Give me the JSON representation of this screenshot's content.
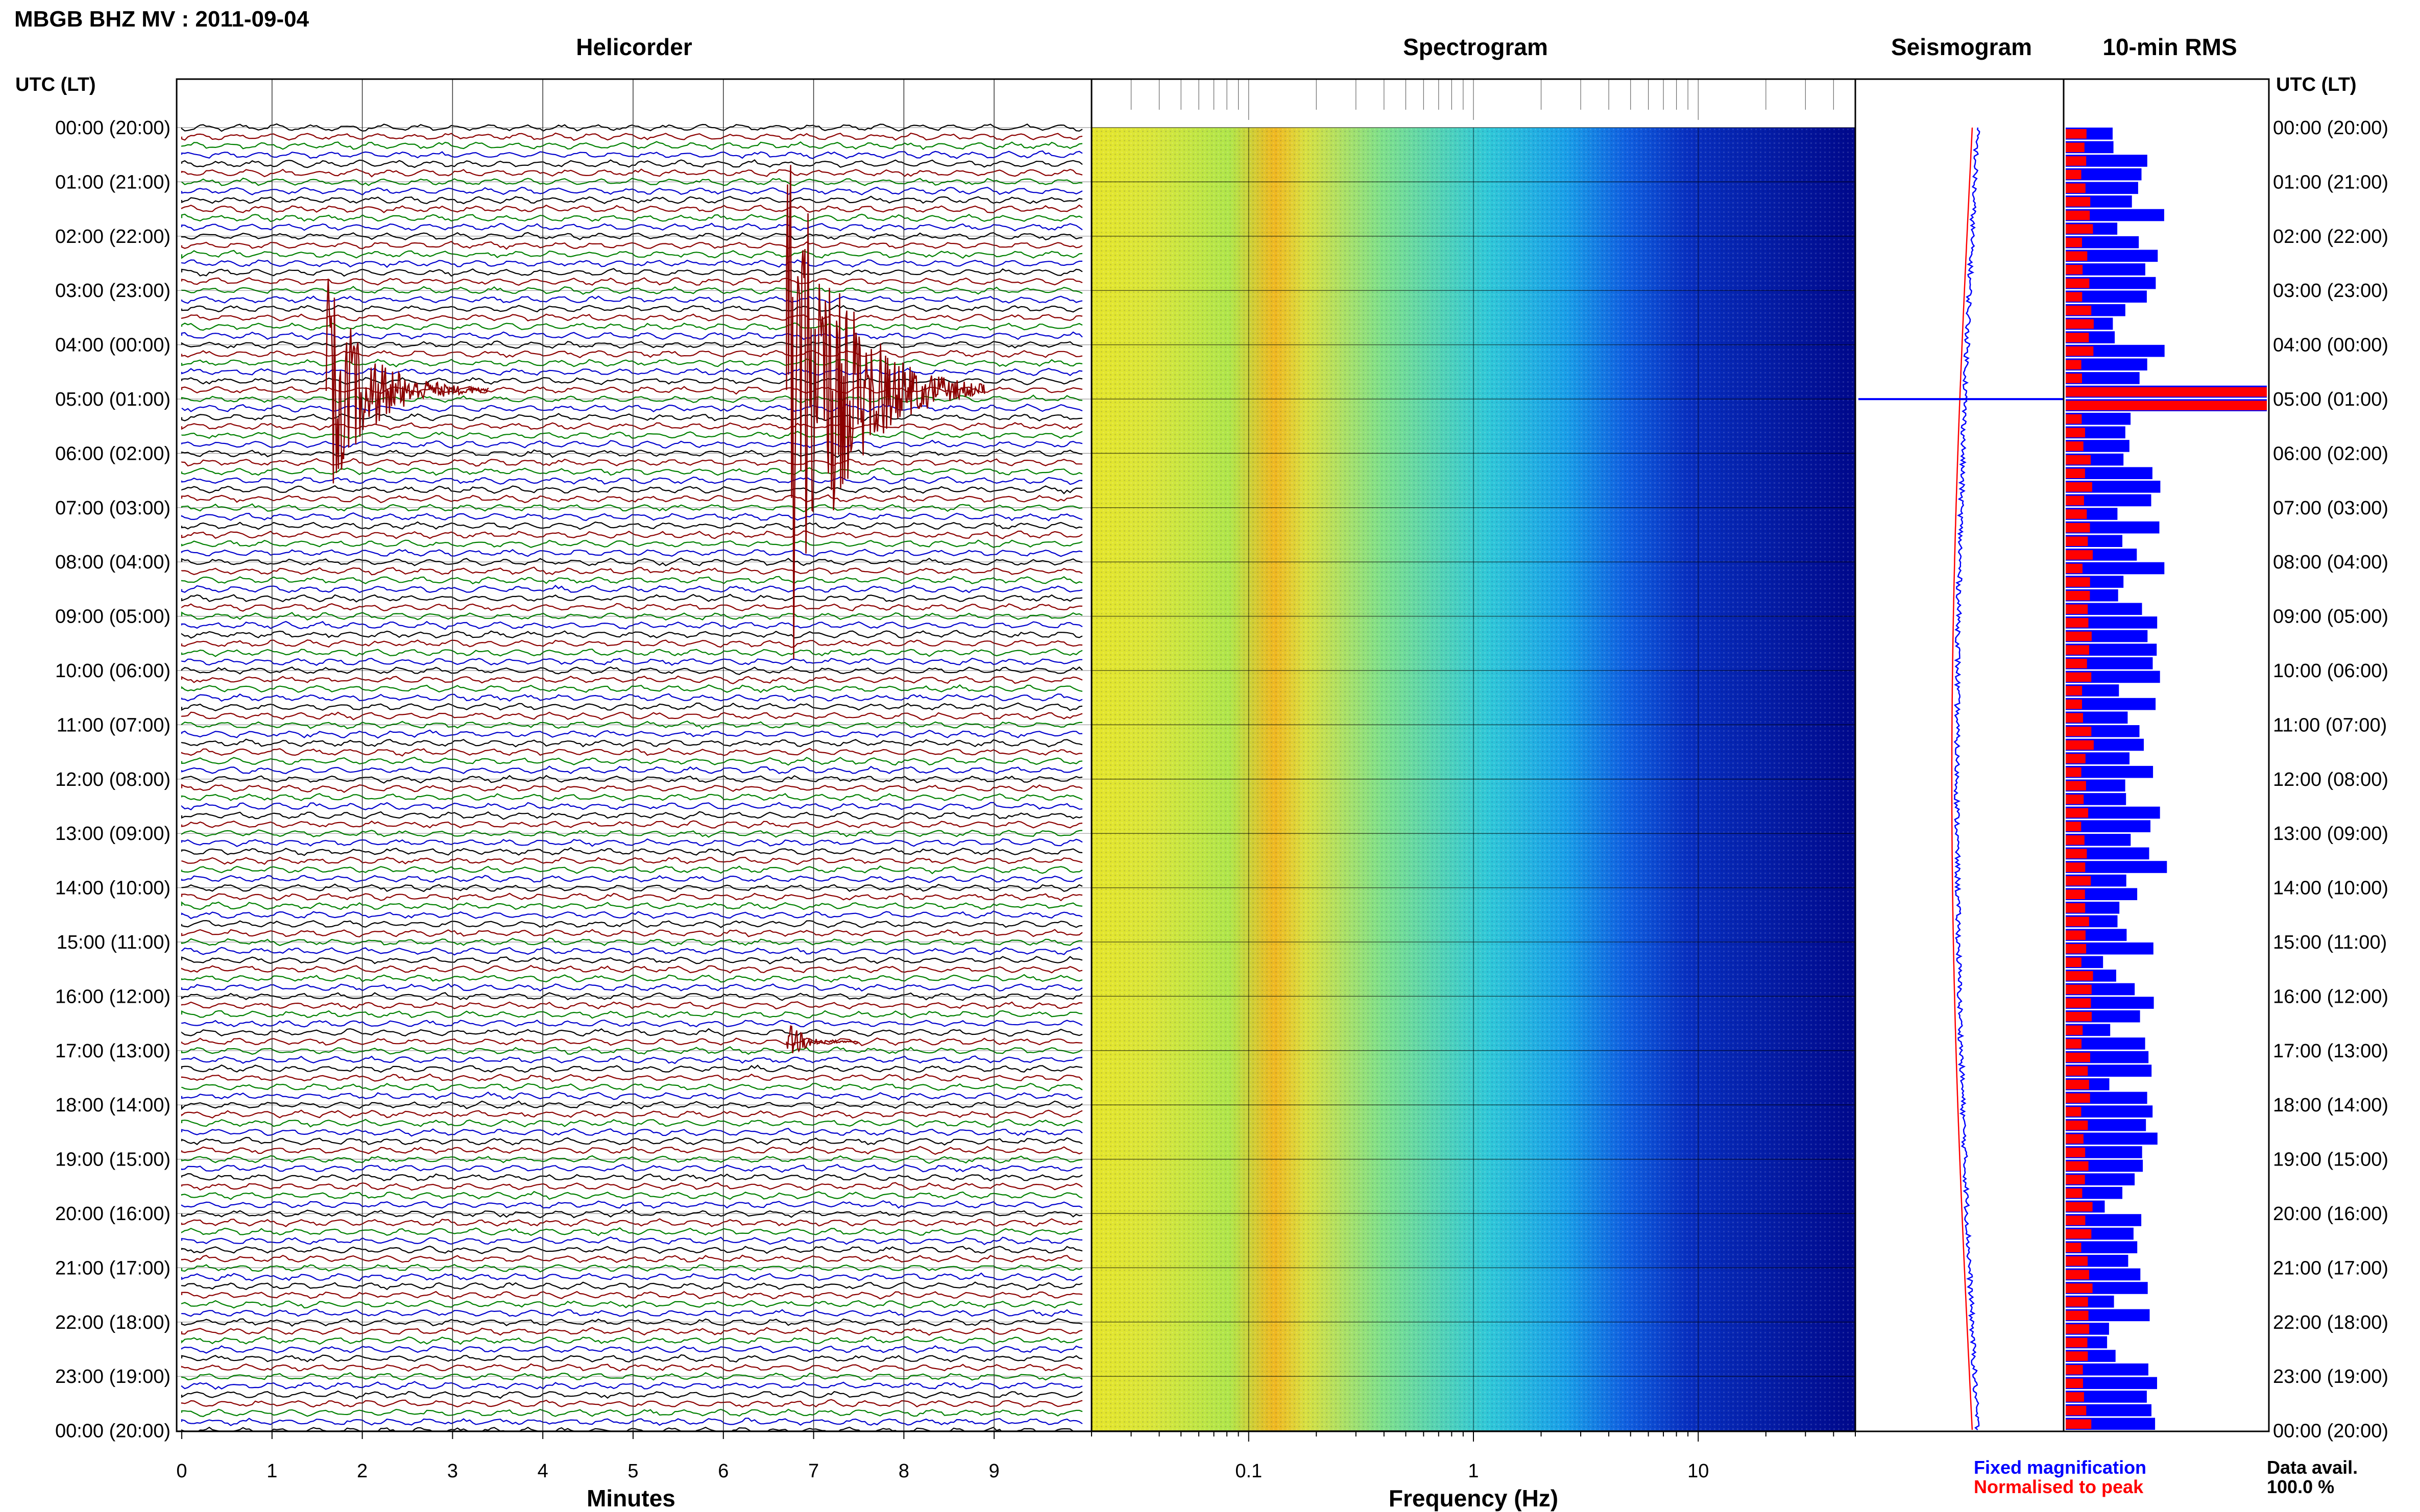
{
  "header": {
    "title": "MBGB BHZ MV : 2011-09-04",
    "utc_left": "UTC (LT)",
    "utc_right": "UTC (LT)"
  },
  "panels": {
    "helicorder": "Helicorder",
    "spectrogram": "Spectrogram",
    "seismogram": "Seismogram",
    "rms": "10-min RMS"
  },
  "axes": {
    "helicorder_xlabel": "Minutes",
    "helicorder_ticks": [
      "0",
      "1",
      "2",
      "3",
      "4",
      "5",
      "6",
      "7",
      "8",
      "9"
    ],
    "spectrogram_xlabel": "Frequency (Hz)",
    "spectrogram_ticks": [
      "0.1",
      "1",
      "10"
    ]
  },
  "time_labels": [
    "00:00 (20:00)",
    "01:00 (21:00)",
    "02:00 (22:00)",
    "03:00 (23:00)",
    "04:00 (00:00)",
    "05:00 (01:00)",
    "06:00 (02:00)",
    "07:00 (03:00)",
    "08:00 (04:00)",
    "09:00 (05:00)",
    "10:00 (06:00)",
    "11:00 (07:00)",
    "12:00 (08:00)",
    "13:00 (09:00)",
    "14:00 (10:00)",
    "15:00 (11:00)",
    "16:00 (12:00)",
    "17:00 (13:00)",
    "18:00 (14:00)",
    "19:00 (15:00)",
    "20:00 (16:00)",
    "21:00 (17:00)",
    "22:00 (18:00)",
    "23:00 (19:00)",
    "00:00 (20:00)"
  ],
  "legend": {
    "fixed": "Fixed magnification",
    "normalised": "Normalised to peak"
  },
  "footer": {
    "avail_label": "Data avail.",
    "avail_value": "100.0 %"
  },
  "colors": {
    "trace_cycle": [
      "#000000",
      "#8b0000",
      "#008000",
      "#0000cd"
    ],
    "event": "#8b0000",
    "rms_fixed": "#0000ff",
    "rms_normalised": "#ff0000",
    "spectrogram_low": "#00008b",
    "spectrogram_high": "#ff8c00"
  },
  "chart_data": [
    {
      "type": "line",
      "name": "Helicorder",
      "xlabel": "Minutes",
      "xlim": [
        0,
        10
      ],
      "rows_per_day": 144,
      "row_minutes": 10,
      "events": [
        {
          "row_start_utc": "04:50",
          "minute": 1.6,
          "duration_min": 1.8
        },
        {
          "row_start_utc": "04:50",
          "minute": 6.7,
          "duration_min": 2.2
        },
        {
          "row_start_utc": "16:50",
          "minute": 6.7,
          "duration_min": 0.8
        }
      ]
    },
    {
      "type": "heatmap",
      "name": "Spectrogram",
      "xlabel": "Frequency (Hz)",
      "x_scale": "log",
      "xlim": [
        0.02,
        50
      ],
      "xticks": [
        0.1,
        1,
        10
      ]
    },
    {
      "type": "line",
      "name": "Seismogram",
      "series": [
        {
          "name": "Fixed magnification",
          "color": "#0000ff"
        },
        {
          "name": "Normalised to peak",
          "color": "#ff0000"
        }
      ]
    },
    {
      "type": "bar",
      "name": "10-min RMS",
      "series": [
        {
          "name": "Fixed magnification",
          "color": "#0000ff"
        },
        {
          "name": "Normalised to peak",
          "color": "#ff0000"
        }
      ],
      "peak_row_utc": "05:00"
    }
  ]
}
